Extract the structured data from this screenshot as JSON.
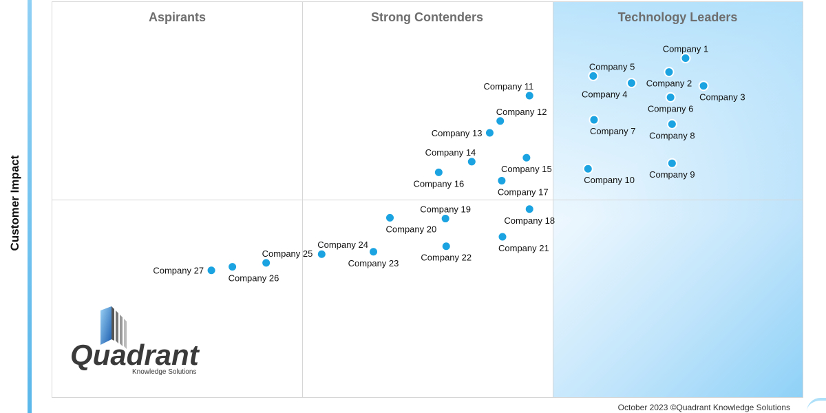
{
  "chart_data": {
    "type": "scatter",
    "ylabel": "Customer Impact",
    "xlabel": "",
    "quadrants": [
      "Aspirants",
      "Strong Contenders",
      "Technology Leaders"
    ],
    "xlim": [
      0,
      100
    ],
    "ylim": [
      0,
      100
    ],
    "points": [
      {
        "name": "Company 1",
        "x": 84.4,
        "y": 85.8,
        "label_pos": "above"
      },
      {
        "name": "Company 2",
        "x": 82.2,
        "y": 82.3,
        "label_pos": "below"
      },
      {
        "name": "Company 3",
        "x": 86.8,
        "y": 78.8,
        "label_pos": "below-right"
      },
      {
        "name": "Company 4",
        "x": 77.2,
        "y": 79.5,
        "label_pos": "below-left"
      },
      {
        "name": "Company 5",
        "x": 72.1,
        "y": 81.3,
        "label_pos": "above-right"
      },
      {
        "name": "Company 6",
        "x": 82.4,
        "y": 75.9,
        "label_pos": "below"
      },
      {
        "name": "Company 7",
        "x": 72.2,
        "y": 70.2,
        "label_pos": "below-right"
      },
      {
        "name": "Company 8",
        "x": 82.6,
        "y": 69.1,
        "label_pos": "below"
      },
      {
        "name": "Company 9",
        "x": 82.6,
        "y": 59.2,
        "label_pos": "below"
      },
      {
        "name": "Company 10",
        "x": 71.4,
        "y": 57.8,
        "label_pos": "below-right"
      },
      {
        "name": "Company 11",
        "x": 63.6,
        "y": 76.3,
        "label_pos": "above-left"
      },
      {
        "name": "Company 12",
        "x": 59.7,
        "y": 69.9,
        "label_pos": "above-right"
      },
      {
        "name": "Company 13",
        "x": 58.3,
        "y": 66.9,
        "label_pos": "left"
      },
      {
        "name": "Company 14",
        "x": 55.9,
        "y": 59.6,
        "label_pos": "above-left"
      },
      {
        "name": "Company 15",
        "x": 63.2,
        "y": 60.6,
        "label_pos": "below"
      },
      {
        "name": "Company 16",
        "x": 51.5,
        "y": 56.9,
        "label_pos": "below"
      },
      {
        "name": "Company 17",
        "x": 59.9,
        "y": 54.8,
        "label_pos": "below-right"
      },
      {
        "name": "Company 18",
        "x": 63.6,
        "y": 47.6,
        "label_pos": "below"
      },
      {
        "name": "Company 19",
        "x": 52.4,
        "y": 45.2,
        "label_pos": "above"
      },
      {
        "name": "Company 20",
        "x": 45.0,
        "y": 45.4,
        "label_pos": "below-right"
      },
      {
        "name": "Company 21",
        "x": 60.0,
        "y": 40.6,
        "label_pos": "below-right"
      },
      {
        "name": "Company 22",
        "x": 52.5,
        "y": 38.2,
        "label_pos": "below"
      },
      {
        "name": "Company 23",
        "x": 42.8,
        "y": 36.8,
        "label_pos": "below"
      },
      {
        "name": "Company 24",
        "x": 35.9,
        "y": 36.2,
        "label_pos": "above-right"
      },
      {
        "name": "Company 25",
        "x": 28.5,
        "y": 34.0,
        "label_pos": "above-right"
      },
      {
        "name": "Company 26",
        "x": 24.0,
        "y": 33.0,
        "label_pos": "below-right"
      },
      {
        "name": "Company 27",
        "x": 21.2,
        "y": 32.1,
        "label_pos": "left"
      }
    ],
    "marker_color": "#1aa3e0",
    "leader_gradient_color": "#7ecbf6",
    "grid": false
  },
  "logo": {
    "brand": "Quadrant",
    "tagline": "Knowledge Solutions"
  },
  "footer": {
    "text": "October 2023 ©Quadrant Knowledge Solutions"
  }
}
